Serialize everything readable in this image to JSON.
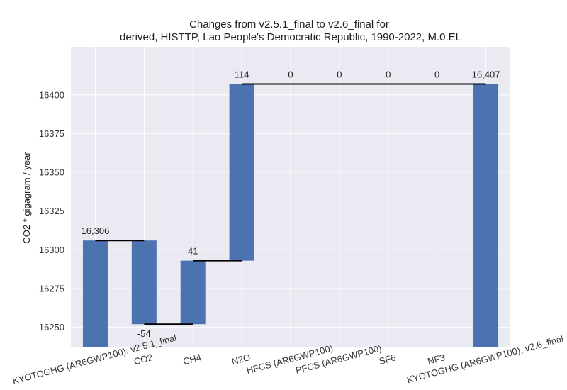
{
  "chart_data": {
    "type": "bar",
    "subtype": "waterfall",
    "title_line1": "Changes from v2.5.1_final to v2.6_final for",
    "title_line2": "derived, HISTTP, Lao People's Democratic Republic, 1990-2022, M.0.EL",
    "ylabel": "CO2 * gigagram / year",
    "ylim": [
      16237,
      16431
    ],
    "yticks": [
      16250,
      16275,
      16300,
      16325,
      16350,
      16375,
      16400
    ],
    "grid": true,
    "categories": [
      "KYOTOGHG (AR6GWP100), v2.5.1_final",
      "CO2",
      "CH4",
      "N2O",
      "HFCS (AR6GWP100)",
      "PFCS (AR6GWP100)",
      "SF6",
      "NF3",
      "KYOTOGHG (AR6GWP100), v2.6_final"
    ],
    "bars": [
      {
        "kind": "total",
        "start": 0,
        "end": 16306,
        "label": "16,306"
      },
      {
        "kind": "delta",
        "start": 16306,
        "end": 16252,
        "label": "-54"
      },
      {
        "kind": "delta",
        "start": 16252,
        "end": 16293,
        "label": "41"
      },
      {
        "kind": "delta",
        "start": 16293,
        "end": 16407,
        "label": "114"
      },
      {
        "kind": "delta",
        "start": 16407,
        "end": 16407,
        "label": "0"
      },
      {
        "kind": "delta",
        "start": 16407,
        "end": 16407,
        "label": "0"
      },
      {
        "kind": "delta",
        "start": 16407,
        "end": 16407,
        "label": "0"
      },
      {
        "kind": "delta",
        "start": 16407,
        "end": 16407,
        "label": "0"
      },
      {
        "kind": "total",
        "start": 0,
        "end": 16407,
        "label": "16,407"
      }
    ],
    "colors": {
      "bar": "#4c72b0",
      "plot_bg": "#eaeaf2",
      "grid": "#ffffff",
      "connector": "#000000"
    }
  }
}
